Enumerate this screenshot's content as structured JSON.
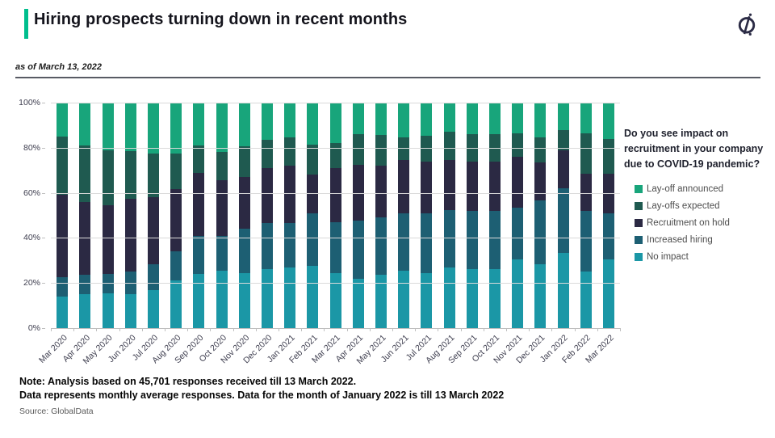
{
  "header": {
    "title": "Hiring prospects turning down in recent months",
    "as_of": "as of March 13, 2022",
    "accent_color": "#00BE8D",
    "logo_icon": "globaldata-compass-logo",
    "logo_color": "#2b2b45"
  },
  "chart_data": {
    "type": "bar",
    "stacked": true,
    "unit": "%",
    "title": "",
    "question": "Do you see impact on recruitment in your company due to COVID-19 pandemic?",
    "ylim": [
      0,
      100
    ],
    "yticks": [
      "100%",
      "80%",
      "60%",
      "40%",
      "20%",
      "0%"
    ],
    "grid": true,
    "legend_position": "right",
    "categories": [
      "Mar 2020",
      "Apr 2020",
      "May 2020",
      "Jun 2020",
      "Jul 2020",
      "Aug 2020",
      "Sep 2020",
      "Oct 2020",
      "Nov 2020",
      "Dec 2020",
      "Jan 2021",
      "Feb 2021",
      "Mar 2021",
      "Apr 2021",
      "May 2021",
      "Jun 2021",
      "Jul 2021",
      "Aug 2021",
      "Sep 2021",
      "Oct 2021",
      "Nov 2021",
      "Dec 2021",
      "Jan 2022",
      "Feb 2022",
      "Mar 2022"
    ],
    "series": [
      {
        "name": "No impact",
        "color": "#1B97A6",
        "values": [
          14,
          15,
          15.5,
          15,
          17,
          21,
          24,
          25.5,
          24.5,
          26,
          27,
          27.5,
          24.5,
          22,
          23.5,
          25.5,
          24.5,
          27,
          26,
          26,
          30.5,
          28.5,
          33.5,
          25,
          30.5
        ]
      },
      {
        "name": "Increased hiring",
        "color": "#1D5F73",
        "values": [
          8.5,
          8.5,
          8.5,
          10,
          11.5,
          13,
          17,
          15.5,
          19.5,
          20.5,
          19.5,
          23.5,
          22.5,
          25.5,
          25.5,
          25.5,
          26.5,
          25.5,
          26,
          26,
          23,
          28,
          28.5,
          27,
          20.5
        ]
      },
      {
        "name": "Recruitment on hold",
        "color": "#2B2943",
        "values": [
          36.5,
          32.5,
          30.5,
          32.5,
          29.5,
          27.5,
          28,
          24.5,
          23,
          24.5,
          25.5,
          17,
          24,
          25,
          23,
          23.5,
          23,
          22,
          22,
          22,
          22.5,
          17,
          17,
          16.5,
          17.5
        ]
      },
      {
        "name": "Lay-offs expected",
        "color": "#1F5A50",
        "values": [
          26,
          25,
          24.5,
          21,
          19.5,
          16,
          12,
          12.5,
          13.5,
          12.5,
          12.5,
          13.5,
          11,
          13.5,
          13.5,
          10,
          11.5,
          12.5,
          12,
          12,
          10.5,
          11,
          9,
          18,
          15.5
        ]
      },
      {
        "name": "Lay-off announced",
        "color": "#18A57B",
        "values": [
          15,
          19,
          21,
          21.5,
          22.5,
          22.5,
          19,
          22,
          19.5,
          16.5,
          15.5,
          18.5,
          18,
          14,
          14.5,
          15.5,
          14.5,
          13,
          14,
          14,
          13.5,
          15.5,
          12,
          13.5,
          16
        ]
      }
    ]
  },
  "notes": {
    "line1": "Note: Analysis based on 45,701 responses received till 13 March 2022.",
    "line2": "Data represents monthly average responses. Data for the month of January 2022 is till 13 March 2022",
    "source": "Source: GlobalData"
  }
}
